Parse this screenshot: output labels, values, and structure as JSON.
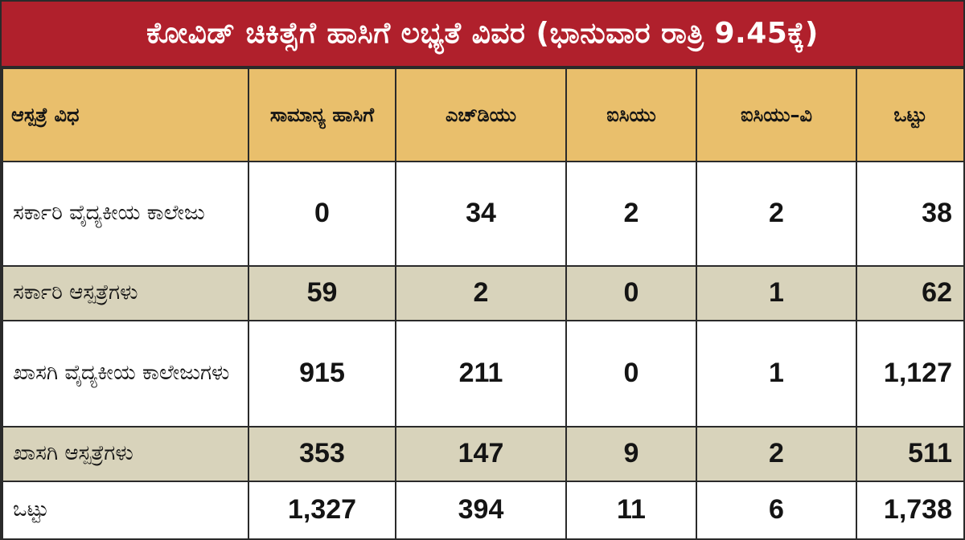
{
  "title": "ಕೋವಿಡ್ ಚಿಕಿತ್ಸೆಗೆ ಹಾಸಿಗೆ ಲಭ್ಯತೆ ವಿವರ (ಭಾನುವಾರ ರಾತ್ರಿ 9.45ಕ್ಕೆ)",
  "colors": {
    "title_background": "#b0202c",
    "header_background": "#e9bf6c",
    "shaded_row": "#d8d3bb",
    "border": "#2a2a2a"
  },
  "table": {
    "headers": {
      "type": "ಆಸ್ಪತ್ರೆ ವಿಧ",
      "general": "ಸಾಮಾನ್ಯ ಹಾಸಿಗೆ",
      "hdu": "ಎಚ್‌ಡಿಯು",
      "icu": "ಐಸಿಯು",
      "icuv": "ಐಸಿಯು–ವಿ",
      "total": "ಒಟ್ಟು"
    },
    "rows": [
      {
        "type": "ಸರ್ಕಾರಿ ವೈದ್ಯಕೀಯ ಕಾಲೇಜು",
        "general": "0",
        "hdu": "34",
        "icu": "2",
        "icuv": "2",
        "total": "38"
      },
      {
        "type": "ಸರ್ಕಾರಿ ಆಸ್ಪತ್ರೆಗಳು",
        "general": "59",
        "hdu": "2",
        "icu": "0",
        "icuv": "1",
        "total": "62"
      },
      {
        "type": "ಖಾಸಗಿ ವೈದ್ಯಕೀಯ ಕಾಲೇಜುಗಳು",
        "general": "915",
        "hdu": "211",
        "icu": "0",
        "icuv": "1",
        "total": "1,127"
      },
      {
        "type": "ಖಾಸಗಿ ಆಸ್ಪತ್ರೆಗಳು",
        "general": "353",
        "hdu": "147",
        "icu": "9",
        "icuv": "2",
        "total": "511"
      },
      {
        "type": "ಒಟ್ಟು",
        "general": "1,327",
        "hdu": "394",
        "icu": "11",
        "icuv": "6",
        "total": "1,738"
      }
    ]
  }
}
